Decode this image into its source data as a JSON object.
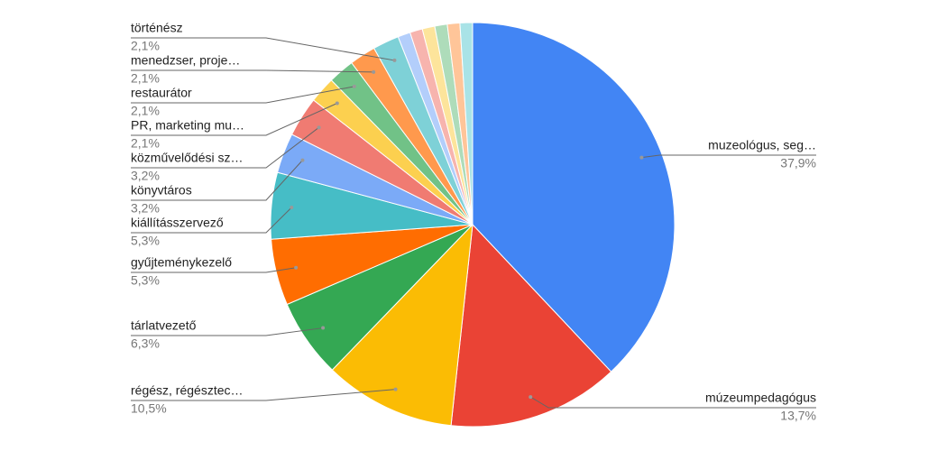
{
  "chart_data": {
    "type": "pie",
    "categories": [
      "muzeológus, seg…",
      "múzeumpedagógus",
      "régész, régésztec…",
      "tárlatvezető",
      "gyűjteménykezelő",
      "kiállításszervező",
      "könyvtáros",
      "közművelődési sz…",
      "PR, marketing mu…",
      "restaurátor",
      "menedzser, proje…",
      "történész",
      null,
      null,
      null,
      null,
      null,
      null
    ],
    "values": [
      37.9,
      13.7,
      10.5,
      6.3,
      5.3,
      5.3,
      3.2,
      3.2,
      2.1,
      2.1,
      2.1,
      2.1,
      1.0,
      1.0,
      1.0,
      1.0,
      1.0,
      1.0
    ],
    "value_labels": [
      "37,9%",
      "13,7%",
      "10,5%",
      "6,3%",
      "5,3%",
      "5,3%",
      "3,2%",
      "3,2%",
      "2,1%",
      "2,1%",
      "2,1%",
      "2,1%",
      null,
      null,
      null,
      null,
      null,
      null
    ],
    "colors": [
      "#4285f4",
      "#ea4335",
      "#fbbc04",
      "#34a853",
      "#ff6d01",
      "#46bdc6",
      "#7baaf7",
      "#f07b72",
      "#fcd04f",
      "#71c287",
      "#ff994d",
      "#7ed1d7",
      "#b3cefb",
      "#f7b4ae",
      "#fde49b",
      "#aedcba",
      "#ffc599",
      "#a9e3e7"
    ]
  }
}
